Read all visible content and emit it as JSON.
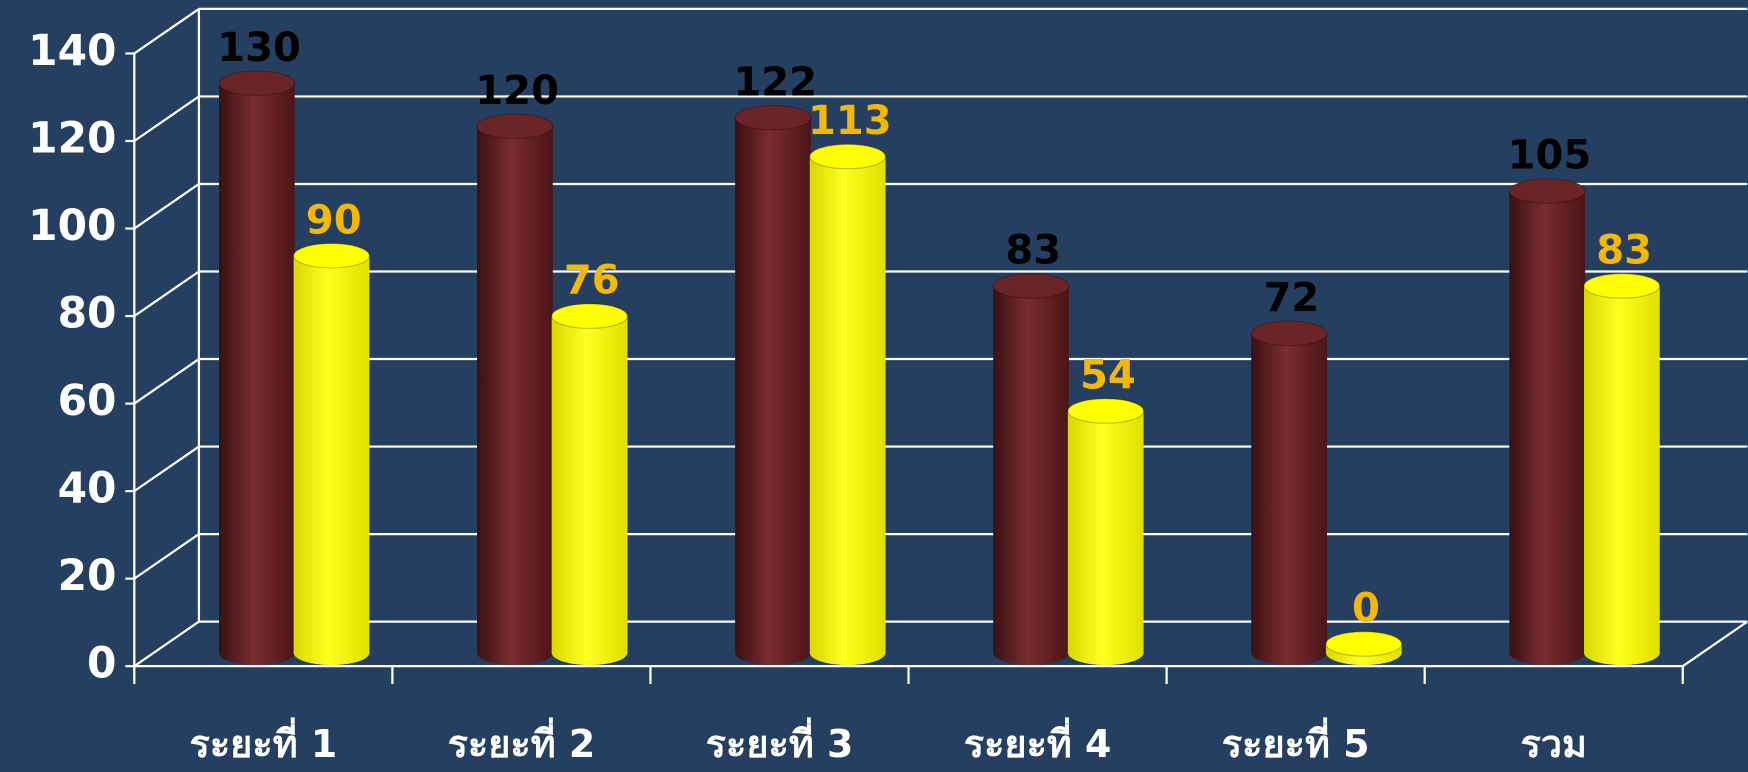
{
  "chart_data": {
    "type": "bar3d",
    "categories": [
      "ระยะที่ 1",
      "ระยะที่ 2",
      "ระยะที่ 3",
      "ระยะที่ 4",
      "ระยะที่ 5",
      "รวม"
    ],
    "series": [
      {
        "color": "#6b2426",
        "label_color": "#000000",
        "values": [
          130,
          120,
          122,
          83,
          72,
          105
        ]
      },
      {
        "color": "#ffff00",
        "label_color": "#f5b800",
        "values": [
          90,
          76,
          113,
          54,
          0,
          83
        ]
      }
    ],
    "ylim": [
      0,
      140
    ],
    "yticks": [
      0,
      20,
      40,
      60,
      80,
      100,
      120,
      140
    ],
    "grid": true
  }
}
